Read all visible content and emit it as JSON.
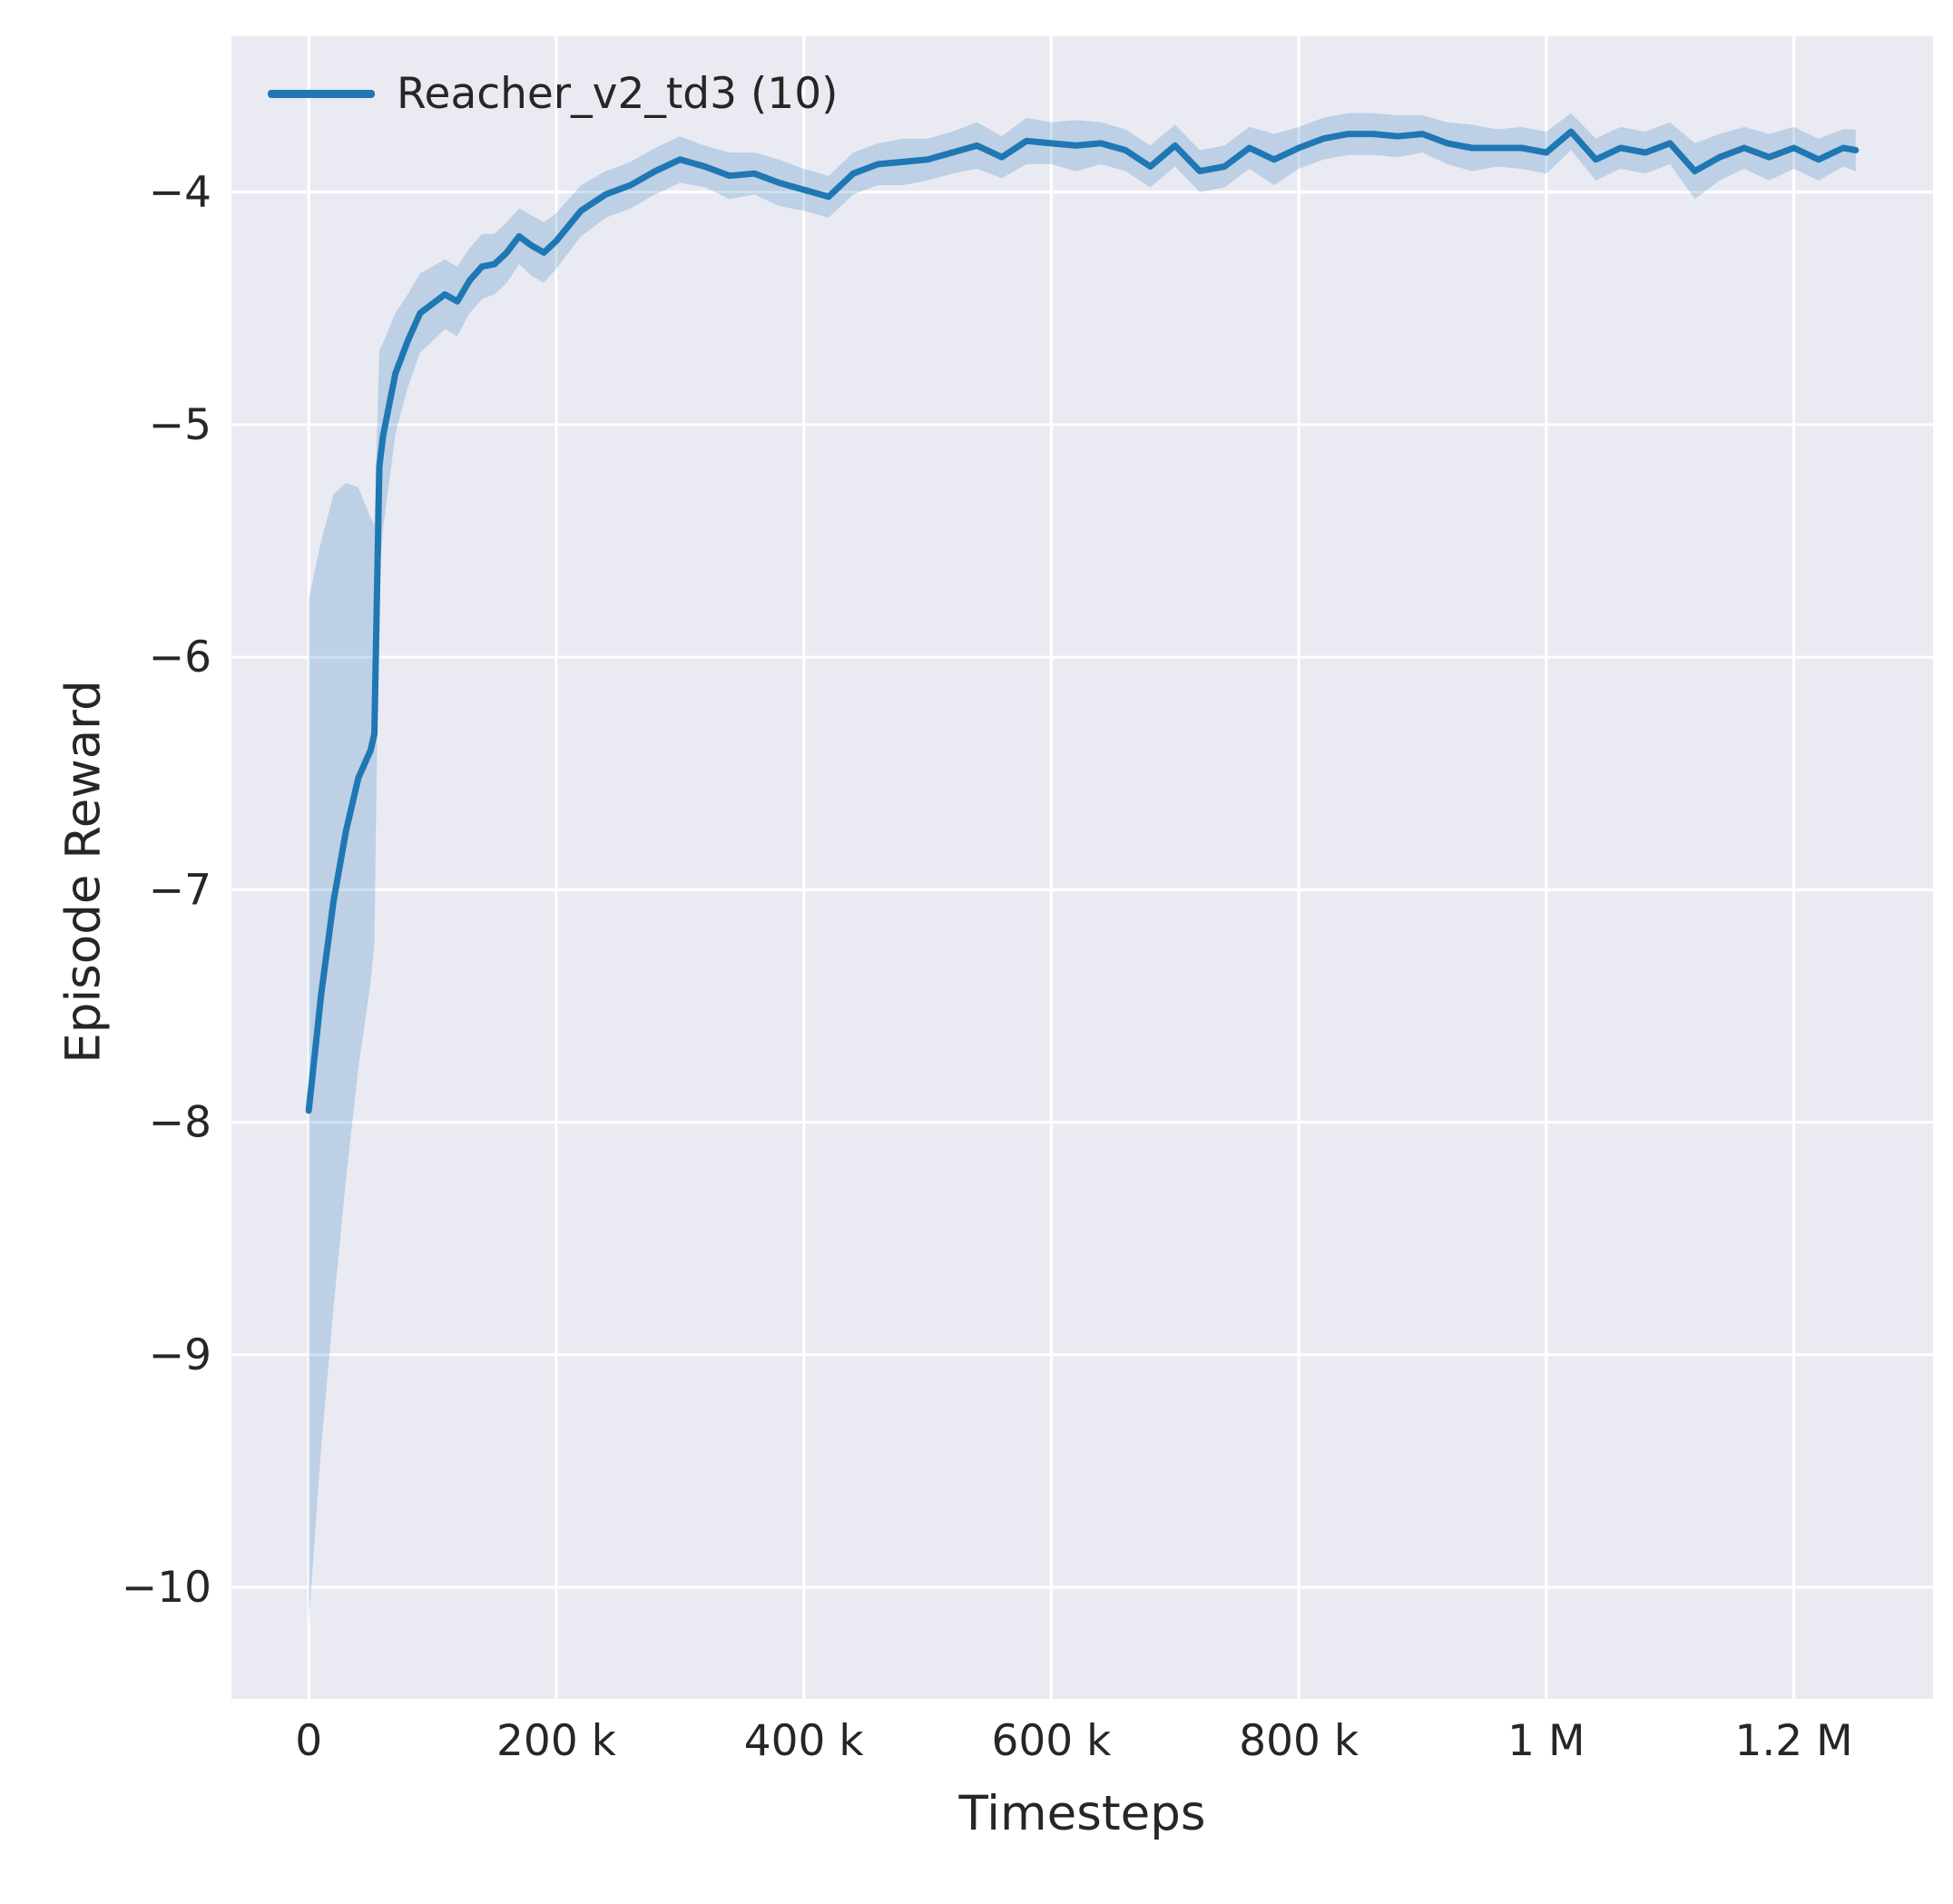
{
  "figure": {
    "background": "#ffffff",
    "axes_background": "#eaeaf2",
    "grid_color": "#ffffff",
    "text_color": "#262626"
  },
  "legend": {
    "label": "Reacher_v2_td3 (10)"
  },
  "chart_data": {
    "type": "line",
    "title": "",
    "xlabel": "Timesteps",
    "ylabel": "Episode Reward",
    "xlim": [
      -62500,
      1312500
    ],
    "ylim": [
      -10.48,
      -3.33
    ],
    "grid": true,
    "legend_position": "upper left",
    "xticks": [
      {
        "value": 0,
        "label": "0"
      },
      {
        "value": 200000,
        "label": "200 k"
      },
      {
        "value": 400000,
        "label": "400 k"
      },
      {
        "value": 600000,
        "label": "600 k"
      },
      {
        "value": 800000,
        "label": "800 k"
      },
      {
        "value": 1000000,
        "label": "1 M"
      },
      {
        "value": 1200000,
        "label": "1.2 M"
      }
    ],
    "yticks": [
      {
        "value": -4,
        "label": "−4"
      },
      {
        "value": -5,
        "label": "−5"
      },
      {
        "value": -6,
        "label": "−6"
      },
      {
        "value": -7,
        "label": "−7"
      },
      {
        "value": -8,
        "label": "−8"
      },
      {
        "value": -9,
        "label": "−9"
      },
      {
        "value": -10,
        "label": "−10"
      }
    ],
    "series": [
      {
        "name": "Reacher_v2_td3 (10)",
        "color": "#1f77b4",
        "band_opacity": 0.22,
        "line_width": 7,
        "points_format": [
          "timesteps",
          "mean_episode_reward",
          "band_halfwidth"
        ],
        "points": [
          [
            0,
            -7.95,
            2.2
          ],
          [
            10000,
            -7.45,
            1.95
          ],
          [
            20000,
            -7.05,
            1.75
          ],
          [
            30000,
            -6.75,
            1.5
          ],
          [
            40000,
            -6.52,
            1.25
          ],
          [
            50000,
            -6.4,
            1.0
          ],
          [
            53000,
            -6.33,
            0.9
          ],
          [
            57000,
            -5.18,
            0.5
          ],
          [
            60000,
            -5.05,
            0.4
          ],
          [
            70000,
            -4.78,
            0.26
          ],
          [
            80000,
            -4.64,
            0.2
          ],
          [
            90000,
            -4.52,
            0.17
          ],
          [
            100000,
            -4.48,
            0.16
          ],
          [
            110000,
            -4.44,
            0.15
          ],
          [
            120000,
            -4.47,
            0.15
          ],
          [
            130000,
            -4.38,
            0.14
          ],
          [
            140000,
            -4.32,
            0.14
          ],
          [
            150000,
            -4.31,
            0.13
          ],
          [
            160000,
            -4.26,
            0.13
          ],
          [
            170000,
            -4.19,
            0.12
          ],
          [
            180000,
            -4.23,
            0.13
          ],
          [
            190000,
            -4.26,
            0.13
          ],
          [
            200000,
            -4.21,
            0.12
          ],
          [
            220000,
            -4.08,
            0.11
          ],
          [
            240000,
            -4.01,
            0.1
          ],
          [
            260000,
            -3.97,
            0.1
          ],
          [
            280000,
            -3.91,
            0.1
          ],
          [
            300000,
            -3.86,
            0.1
          ],
          [
            320000,
            -3.89,
            0.09
          ],
          [
            340000,
            -3.93,
            0.1
          ],
          [
            360000,
            -3.92,
            0.09
          ],
          [
            380000,
            -3.96,
            0.1
          ],
          [
            400000,
            -3.99,
            0.09
          ],
          [
            420000,
            -4.02,
            0.09
          ],
          [
            440000,
            -3.92,
            0.09
          ],
          [
            460000,
            -3.88,
            0.09
          ],
          [
            480000,
            -3.87,
            0.1
          ],
          [
            500000,
            -3.86,
            0.09
          ],
          [
            520000,
            -3.83,
            0.09
          ],
          [
            540000,
            -3.8,
            0.1
          ],
          [
            560000,
            -3.85,
            0.09
          ],
          [
            580000,
            -3.78,
            0.1
          ],
          [
            600000,
            -3.79,
            0.09
          ],
          [
            620000,
            -3.8,
            0.11
          ],
          [
            640000,
            -3.79,
            0.09
          ],
          [
            660000,
            -3.82,
            0.09
          ],
          [
            680000,
            -3.89,
            0.09
          ],
          [
            700000,
            -3.8,
            0.09
          ],
          [
            720000,
            -3.91,
            0.09
          ],
          [
            740000,
            -3.89,
            0.09
          ],
          [
            760000,
            -3.81,
            0.09
          ],
          [
            780000,
            -3.86,
            0.11
          ],
          [
            800000,
            -3.81,
            0.09
          ],
          [
            820000,
            -3.77,
            0.09
          ],
          [
            840000,
            -3.75,
            0.09
          ],
          [
            860000,
            -3.75,
            0.09
          ],
          [
            880000,
            -3.76,
            0.09
          ],
          [
            900000,
            -3.75,
            0.08
          ],
          [
            920000,
            -3.79,
            0.09
          ],
          [
            940000,
            -3.81,
            0.1
          ],
          [
            960000,
            -3.81,
            0.08
          ],
          [
            980000,
            -3.81,
            0.09
          ],
          [
            1000000,
            -3.83,
            0.09
          ],
          [
            1020000,
            -3.74,
            0.08
          ],
          [
            1040000,
            -3.86,
            0.09
          ],
          [
            1060000,
            -3.81,
            0.09
          ],
          [
            1080000,
            -3.83,
            0.09
          ],
          [
            1100000,
            -3.79,
            0.09
          ],
          [
            1120000,
            -3.91,
            0.12
          ],
          [
            1140000,
            -3.85,
            0.1
          ],
          [
            1160000,
            -3.81,
            0.09
          ],
          [
            1180000,
            -3.85,
            0.1
          ],
          [
            1200000,
            -3.81,
            0.09
          ],
          [
            1220000,
            -3.86,
            0.09
          ],
          [
            1240000,
            -3.81,
            0.08
          ],
          [
            1250000,
            -3.82,
            0.09
          ]
        ]
      }
    ]
  }
}
